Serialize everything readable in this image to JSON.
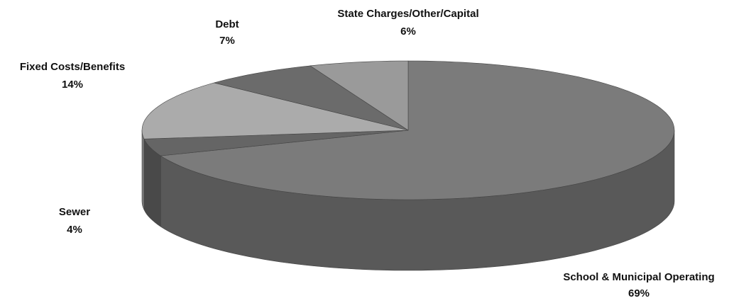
{
  "chart_data": {
    "type": "pie",
    "categories": [
      "School & Municipal Operating",
      "Sewer",
      "Fixed Costs/Benefits",
      "Debt",
      "State Charges/Other/Capital"
    ],
    "values": [
      69,
      4,
      14,
      7,
      6
    ],
    "value_labels": [
      "69%",
      "4%",
      "14%",
      "7%",
      "6%"
    ],
    "colors": [
      "#7b7b7b",
      "#656565",
      "#ababab",
      "#6b6b6b",
      "#9a9a9a"
    ]
  }
}
